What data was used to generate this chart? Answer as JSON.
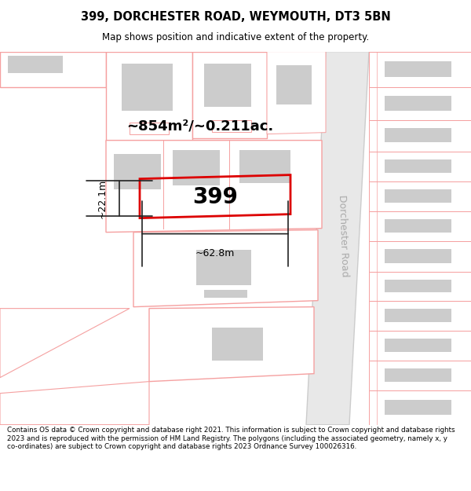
{
  "title_line1": "399, DORCHESTER ROAD, WEYMOUTH, DT3 5BN",
  "title_line2": "Map shows position and indicative extent of the property.",
  "footer_text": "Contains OS data © Crown copyright and database right 2021. This information is subject to Crown copyright and database rights 2023 and is reproduced with the permission of HM Land Registry. The polygons (including the associated geometry, namely x, y co-ordinates) are subject to Crown copyright and database rights 2023 Ordnance Survey 100026316.",
  "area_label": "~854m²/~0.211ac.",
  "property_number": "399",
  "width_label": "~62.8m",
  "height_label": "~22.1m",
  "road_label": "Dorchester Road",
  "bg_color": "#ffffff",
  "pink": "#f5a0a0",
  "pink_fill": "#ffffff",
  "red": "#dd0000",
  "grey": "#cccccc",
  "grey_dark": "#b0b0b0",
  "road_fill": "#e8e8e8",
  "road_edge": "#cccccc",
  "dim_color": "#222222"
}
